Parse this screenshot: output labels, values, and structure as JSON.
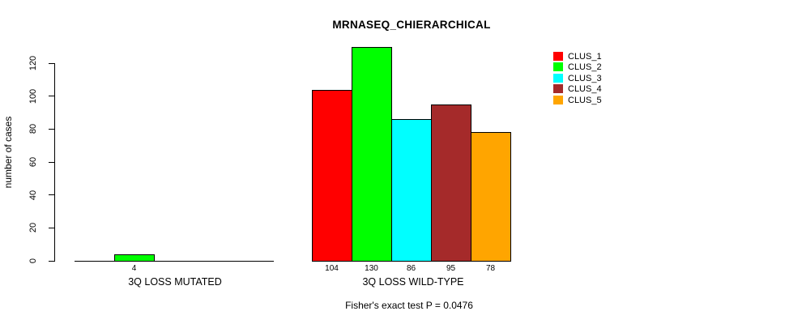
{
  "title": "MRNASEQ_CHIERARCHICAL",
  "footer": "Fisher's exact test P = 0.0476",
  "chart_data": {
    "type": "bar",
    "title": "MRNASEQ_CHIERARCHICAL",
    "xlabel": "",
    "ylabel": "number of cases",
    "groups": [
      "3Q LOSS MUTATED",
      "3Q LOSS WILD-TYPE"
    ],
    "series": [
      {
        "name": "CLUS_1",
        "color": "#FF0000",
        "values": [
          0,
          104
        ]
      },
      {
        "name": "CLUS_2",
        "color": "#00FF00",
        "values": [
          4,
          130
        ]
      },
      {
        "name": "CLUS_3",
        "color": "#00FFFF",
        "values": [
          0,
          86
        ]
      },
      {
        "name": "CLUS_4",
        "color": "#A52A2A",
        "values": [
          0,
          95
        ]
      },
      {
        "name": "CLUS_5",
        "color": "#FFA500",
        "values": [
          0,
          78
        ]
      }
    ],
    "bar_value_labels_shown": [
      [
        "4"
      ],
      [
        "104",
        "130",
        "86",
        "95",
        "78"
      ]
    ],
    "yticks": [
      0,
      20,
      40,
      60,
      80,
      100,
      120
    ],
    "ylim": [
      0,
      120
    ],
    "grid": false,
    "legend_position": "topright",
    "legend_entries": [
      "CLUS_1",
      "CLUS_2",
      "CLUS_3",
      "CLUS_4",
      "CLUS_5"
    ],
    "annotation": "Fisher's exact test P = 0.0476"
  },
  "colors": {
    "axis": "#000000",
    "background": "#ffffff",
    "clus_1": "#FF0000",
    "clus_2": "#00FF00",
    "clus_3": "#00FFFF",
    "clus_4": "#A52A2A",
    "clus_5": "#FFA500"
  }
}
